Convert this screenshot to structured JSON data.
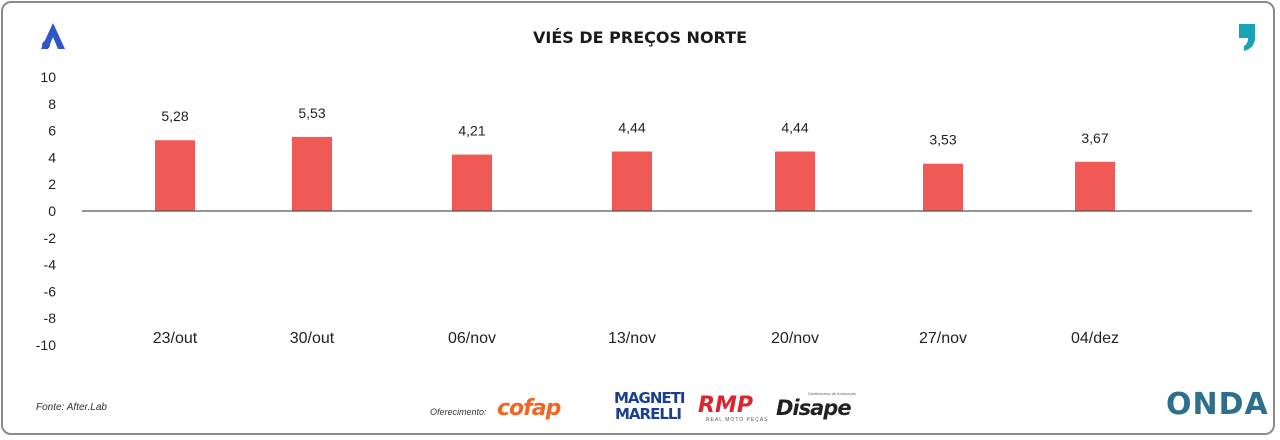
{
  "chart_data": {
    "type": "bar",
    "title": "VIÉS DE PREÇOS NORTE",
    "categories": [
      "23/out",
      "30/out",
      "06/nov",
      "13/nov",
      "20/nov",
      "27/nov",
      "04/dez"
    ],
    "values": [
      5.28,
      5.53,
      4.21,
      4.44,
      4.44,
      3.53,
      3.67
    ],
    "value_labels": [
      "5,28",
      "5,53",
      "4,21",
      "4,44",
      "4,44",
      "3,53",
      "3,67"
    ],
    "yticks": [
      "10",
      "8",
      "6",
      "4",
      "2",
      "0",
      "-2",
      "-4",
      "-6",
      "-8",
      "-10"
    ],
    "ylim": [
      -10,
      10
    ],
    "grid": false,
    "bar_color": "#f05a55"
  },
  "footer": {
    "source": "Fonte: After.Lab",
    "sponsor_label": "Oferecimento:",
    "sponsors": {
      "cofap": "cofap",
      "magneti": "MAGNETI MARELLI",
      "rmp": "RMP",
      "rmp_sub": "REAL MOTO PEÇAS",
      "disape": "Disape",
      "disape_sub": "Distribuidora de Autopeças",
      "onda": "ONDA"
    }
  },
  "colors": {
    "brand_blue": "#2f55c8",
    "brand_cyan": "#1aa3b8",
    "axis": "#555555"
  }
}
